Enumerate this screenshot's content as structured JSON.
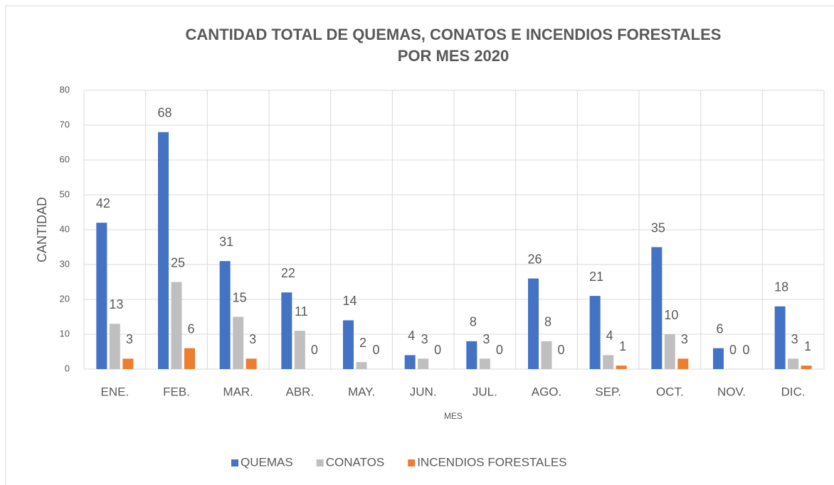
{
  "chart_data": {
    "type": "bar",
    "title": [
      "CANTIDAD TOTAL DE QUEMAS, CONATOS E INCENDIOS FORESTALES",
      "POR MES 2020"
    ],
    "x_label": "MES",
    "y_label": "CANTIDAD",
    "categories": [
      "ENE.",
      "FEB.",
      "MAR.",
      "ABR.",
      "MAY.",
      "JUN.",
      "JUL.",
      "AGO.",
      "SEP.",
      "OCT.",
      "NOV.",
      "DIC."
    ],
    "series": [
      {
        "name": "QUEMAS",
        "color": "#4472c4",
        "values": [
          42,
          68,
          31,
          22,
          14,
          4,
          8,
          26,
          21,
          35,
          6,
          18
        ]
      },
      {
        "name": "CONATOS",
        "color": "#bfbfbf",
        "values": [
          13,
          25,
          15,
          11,
          2,
          3,
          3,
          8,
          4,
          10,
          0,
          3
        ]
      },
      {
        "name": "INCENDIOS FORESTALES",
        "color": "#ed7d31",
        "values": [
          3,
          6,
          3,
          0,
          0,
          0,
          0,
          0,
          1,
          3,
          0,
          1
        ]
      }
    ],
    "ylim": [
      0,
      80
    ],
    "yticks": [
      0,
      10,
      20,
      30,
      40,
      50,
      60,
      70,
      80
    ],
    "grid": true,
    "legend": "bottom"
  }
}
